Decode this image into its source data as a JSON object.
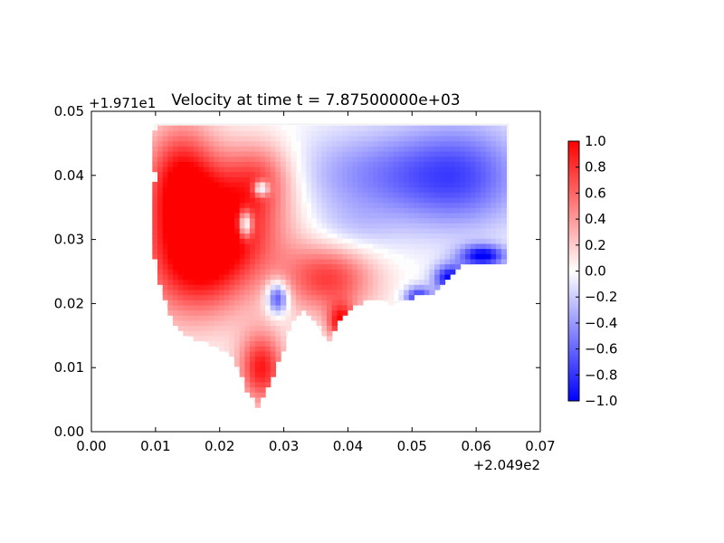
{
  "chart_data": {
    "type": "heatmap",
    "title": "Velocity at time t = 7.87500000e+03",
    "xlabel": "",
    "ylabel": "",
    "x_offset_label": "+2.049e2",
    "y_offset_label": "+1.971e1",
    "xlim": [
      0.0,
      0.07
    ],
    "ylim": [
      0.0,
      0.05
    ],
    "x_ticks": [
      "0.00",
      "0.01",
      "0.02",
      "0.03",
      "0.04",
      "0.05",
      "0.06",
      "0.07"
    ],
    "y_ticks": [
      "0.00",
      "0.01",
      "0.02",
      "0.03",
      "0.04",
      "0.05"
    ],
    "colorbar": {
      "cmap": "bwr",
      "vmin": -1.0,
      "vmax": 1.0,
      "ticks": [
        "−1.0",
        "−0.8",
        "−0.6",
        "−0.4",
        "−0.2",
        "0.0",
        "0.2",
        "0.4",
        "0.6",
        "0.8",
        "1.0"
      ]
    },
    "colors": {
      "low": "#0000ff",
      "mid": "#ffffff",
      "high": "#ff0000"
    },
    "domain_outline": [
      [
        0.01,
        0.048
      ],
      [
        0.065,
        0.048
      ],
      [
        0.065,
        0.0265
      ],
      [
        0.058,
        0.026
      ],
      [
        0.054,
        0.022
      ],
      [
        0.05,
        0.021
      ],
      [
        0.047,
        0.02
      ],
      [
        0.044,
        0.021
      ],
      [
        0.042,
        0.02
      ],
      [
        0.04,
        0.019
      ],
      [
        0.038,
        0.016
      ],
      [
        0.037,
        0.014
      ],
      [
        0.035,
        0.017
      ],
      [
        0.033,
        0.019
      ],
      [
        0.031,
        0.017
      ],
      [
        0.03,
        0.013
      ],
      [
        0.028,
        0.008
      ],
      [
        0.026,
        0.004
      ],
      [
        0.024,
        0.007
      ],
      [
        0.022,
        0.012
      ],
      [
        0.018,
        0.014
      ],
      [
        0.015,
        0.015
      ],
      [
        0.013,
        0.017
      ],
      [
        0.012,
        0.019
      ],
      [
        0.011,
        0.022
      ],
      [
        0.01,
        0.026
      ],
      [
        0.0095,
        0.03
      ],
      [
        0.0095,
        0.036
      ],
      [
        0.01,
        0.04
      ],
      [
        0.0095,
        0.045
      ]
    ],
    "features": [
      {
        "x": 0.02,
        "y": 0.032,
        "value": 0.95,
        "sx": 0.007,
        "sy": 0.006
      },
      {
        "x": 0.014,
        "y": 0.04,
        "value": 0.85,
        "sx": 0.004,
        "sy": 0.006
      },
      {
        "x": 0.016,
        "y": 0.025,
        "value": 0.7,
        "sx": 0.006,
        "sy": 0.006
      },
      {
        "x": 0.026,
        "y": 0.04,
        "value": 0.55,
        "sx": 0.004,
        "sy": 0.004
      },
      {
        "x": 0.037,
        "y": 0.024,
        "value": 0.75,
        "sx": 0.005,
        "sy": 0.004
      },
      {
        "x": 0.039,
        "y": 0.017,
        "value": 0.9,
        "sx": 0.0015,
        "sy": 0.002
      },
      {
        "x": 0.0265,
        "y": 0.01,
        "value": 0.9,
        "sx": 0.0025,
        "sy": 0.004
      },
      {
        "x": 0.024,
        "y": 0.0325,
        "value": -1.0,
        "sx": 0.0008,
        "sy": 0.0015
      },
      {
        "x": 0.0265,
        "y": 0.038,
        "value": -0.9,
        "sx": 0.0008,
        "sy": 0.0008
      },
      {
        "x": 0.029,
        "y": 0.021,
        "value": -0.9,
        "sx": 0.0012,
        "sy": 0.0018
      },
      {
        "x": 0.045,
        "y": 0.04,
        "value": -0.45,
        "sx": 0.01,
        "sy": 0.005
      },
      {
        "x": 0.058,
        "y": 0.04,
        "value": -0.55,
        "sx": 0.007,
        "sy": 0.006
      },
      {
        "x": 0.061,
        "y": 0.0275,
        "value": -1.0,
        "sx": 0.0025,
        "sy": 0.0012
      },
      {
        "x": 0.056,
        "y": 0.024,
        "value": -1.0,
        "sx": 0.0018,
        "sy": 0.0015
      },
      {
        "x": 0.051,
        "y": 0.021,
        "value": -0.85,
        "sx": 0.0015,
        "sy": 0.0012
      },
      {
        "x": 0.04,
        "y": 0.031,
        "value": -0.2,
        "sx": 0.005,
        "sy": 0.003
      }
    ]
  }
}
